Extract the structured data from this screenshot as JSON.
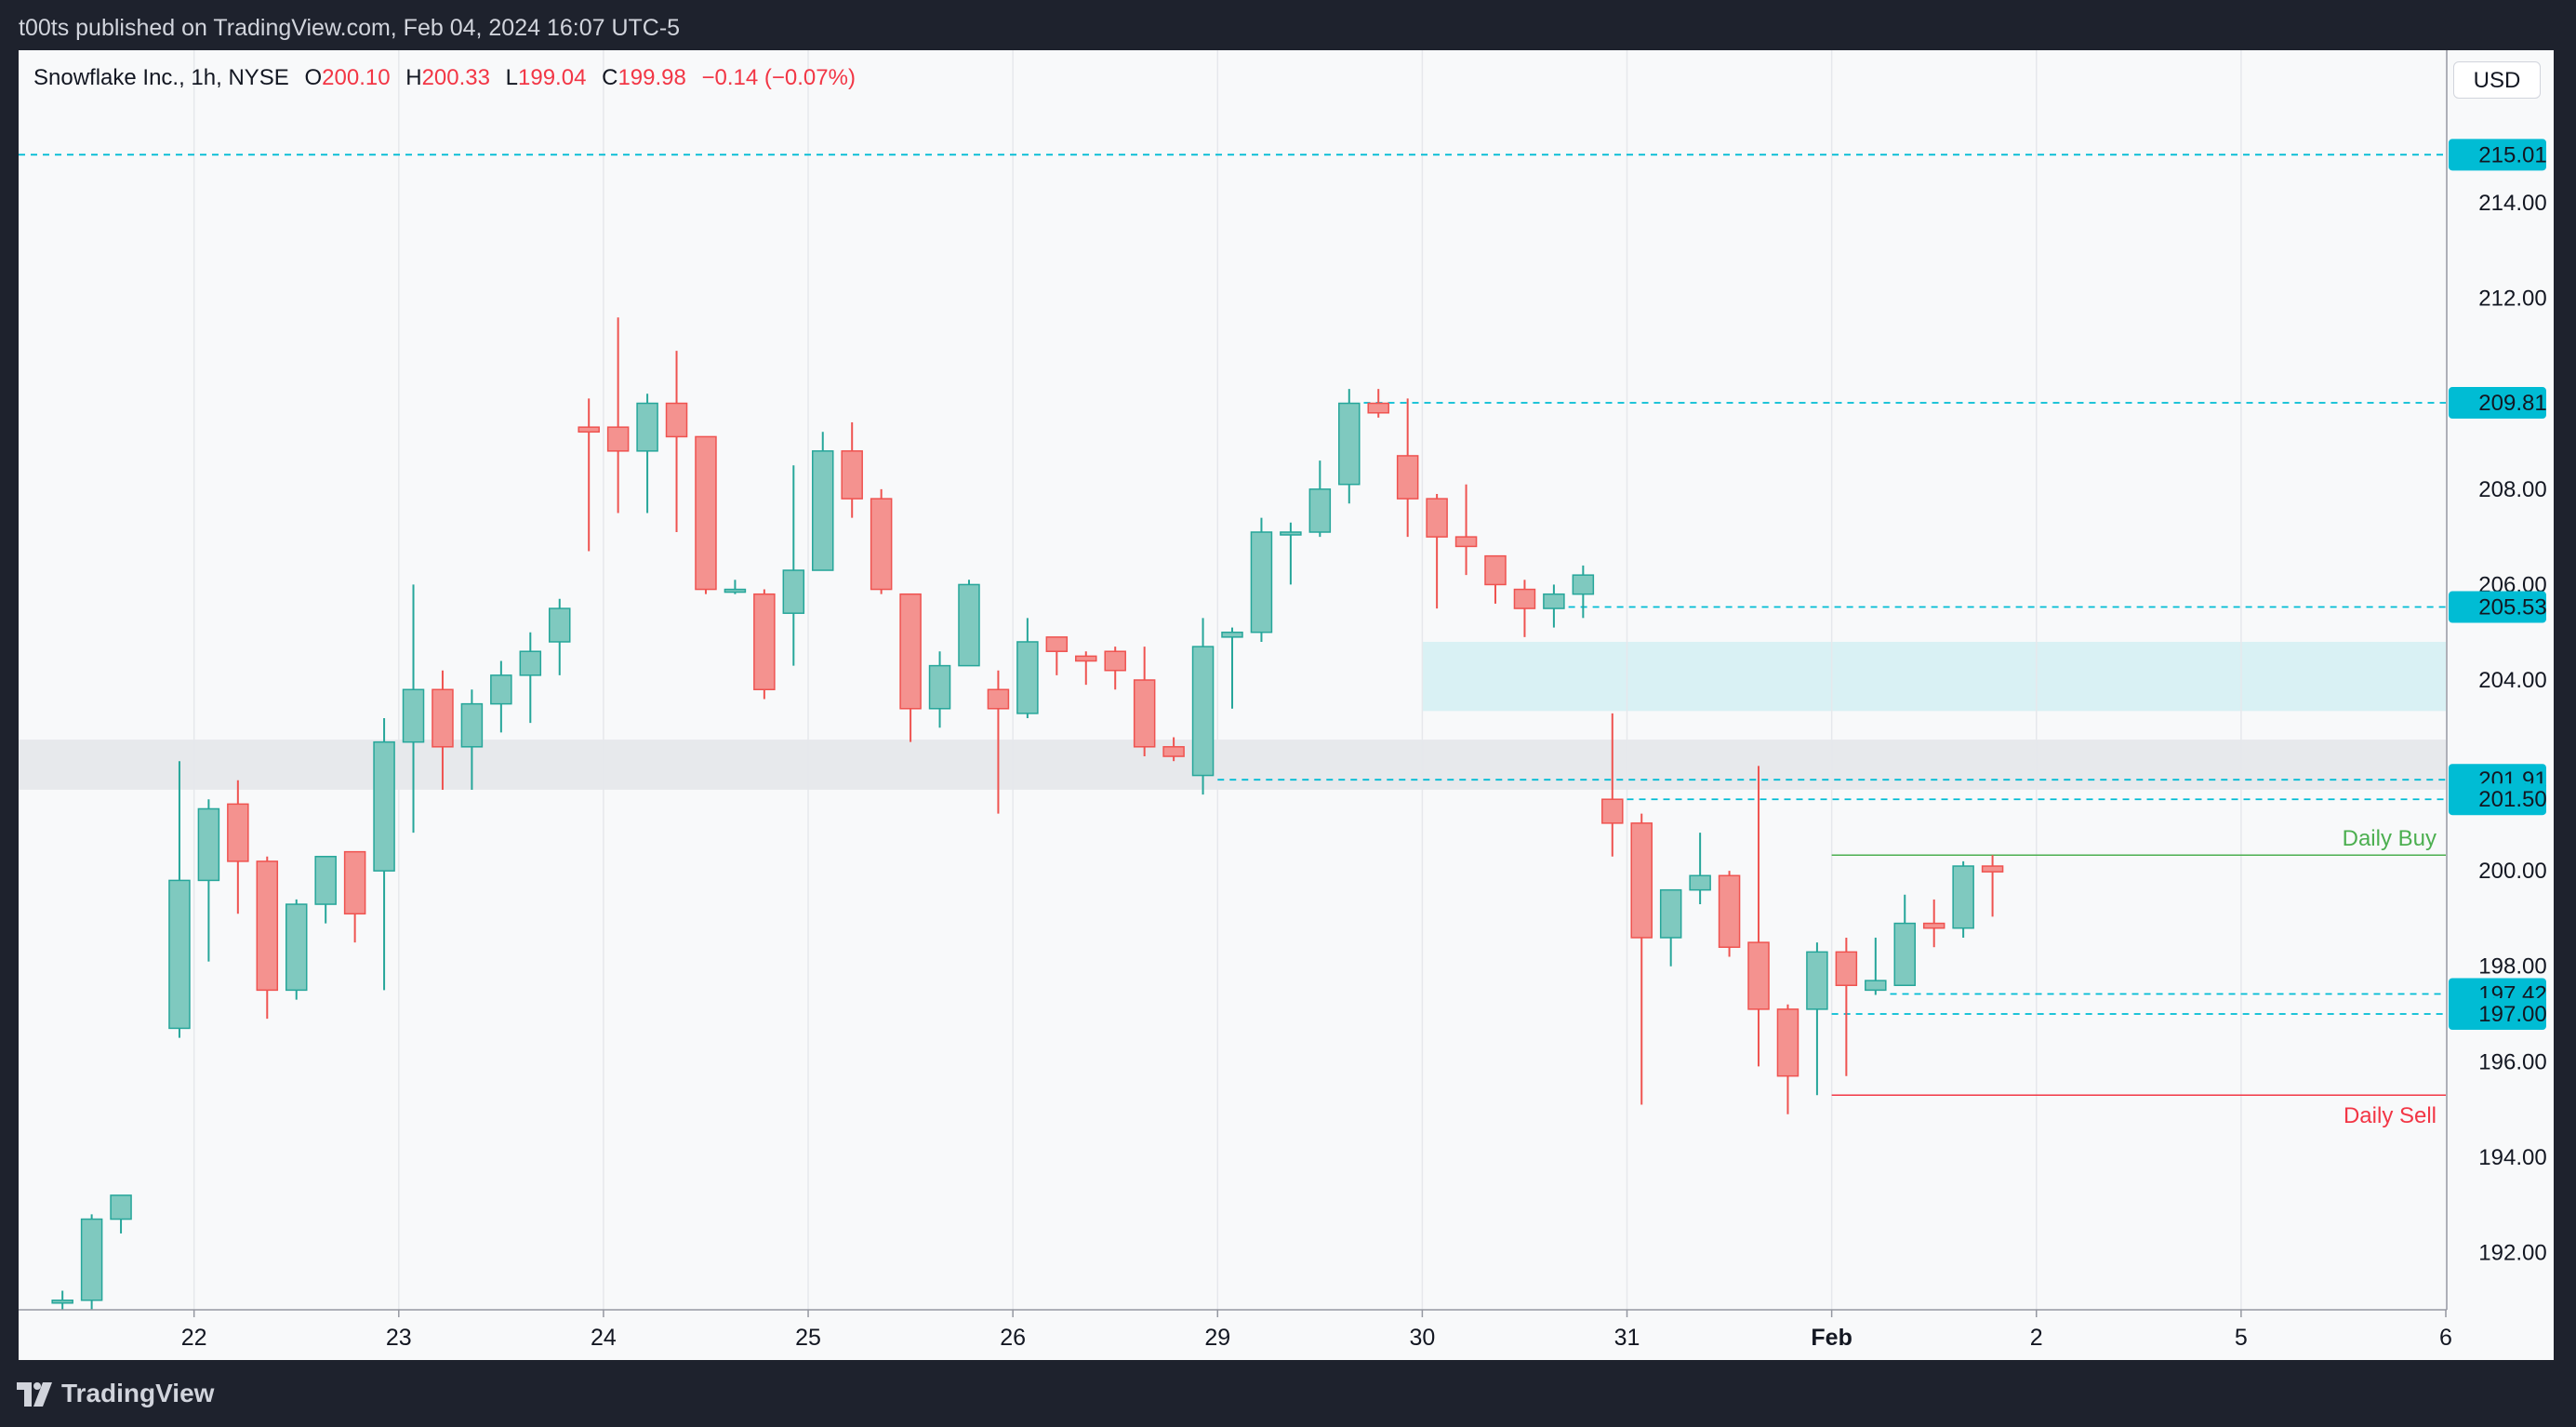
{
  "header": {
    "publish_text": "t00ts published on TradingView.com, Feb 04, 2024 16:07 UTC-5"
  },
  "legend": {
    "symbol": "Snowflake Inc., 1h, NYSE",
    "o_label": "O",
    "o_value": "200.10",
    "h_label": "H",
    "h_value": "200.33",
    "l_label": "L",
    "l_value": "199.04",
    "c_label": "C",
    "c_value": "199.98",
    "change": "−0.14 (−0.07%)"
  },
  "currency": "USD",
  "footer": {
    "brand": "TradingView"
  },
  "colors": {
    "up": "#26a69a",
    "down": "#ef5350",
    "level": "#00bcd4",
    "buy": "#4caf50",
    "sell": "#f23645"
  },
  "chart_data": {
    "type": "candlestick",
    "ylim": [
      190.8,
      217.2
    ],
    "y_ticks": [
      "192.00",
      "194.00",
      "196.00",
      "198.00",
      "200.00",
      "204.00",
      "206.00",
      "208.00",
      "212.00",
      "214.00"
    ],
    "x_ticks": [
      {
        "label": "22",
        "x": 4.5
      },
      {
        "label": "23",
        "x": 11.5
      },
      {
        "label": "24",
        "x": 18.5
      },
      {
        "label": "25",
        "x": 25.5
      },
      {
        "label": "26",
        "x": 32.5
      },
      {
        "label": "29",
        "x": 39.5
      },
      {
        "label": "30",
        "x": 46.5
      },
      {
        "label": "31",
        "x": 53.5
      },
      {
        "label": "Feb",
        "x": 60.5
      },
      {
        "label": "2",
        "x": 67.5
      },
      {
        "label": "5",
        "x": 74.5
      },
      {
        "label": "6",
        "x": 81.5
      }
    ],
    "x_range": [
      -1.5,
      81.5
    ],
    "candles": [
      [
        0,
        191.0,
        191.0,
        191.2,
        190.8
      ],
      [
        1,
        191.0,
        192.7,
        192.8,
        190.8
      ],
      [
        2,
        192.7,
        193.2,
        193.2,
        192.4
      ],
      [
        4,
        196.7,
        199.8,
        202.3,
        196.5
      ],
      [
        5,
        199.8,
        201.3,
        201.5,
        198.1
      ],
      [
        6,
        201.4,
        200.2,
        201.9,
        199.1
      ],
      [
        7,
        200.2,
        197.5,
        200.3,
        196.9
      ],
      [
        8,
        197.5,
        199.3,
        199.4,
        197.3
      ],
      [
        9,
        199.3,
        200.3,
        200.3,
        198.9
      ],
      [
        10,
        200.4,
        199.1,
        200.4,
        198.5
      ],
      [
        11,
        200.0,
        202.7,
        203.2,
        197.5
      ],
      [
        12,
        202.7,
        203.8,
        206.0,
        200.8
      ],
      [
        13,
        203.8,
        202.6,
        204.2,
        201.7
      ],
      [
        14,
        202.6,
        203.5,
        203.8,
        201.7
      ],
      [
        15,
        203.5,
        204.1,
        204.4,
        202.9
      ],
      [
        16,
        204.1,
        204.6,
        205.0,
        203.1
      ],
      [
        17,
        204.8,
        205.5,
        205.7,
        204.1
      ],
      [
        18,
        209.3,
        209.2,
        209.9,
        206.7
      ],
      [
        19,
        209.3,
        208.8,
        211.6,
        207.5
      ],
      [
        20,
        208.8,
        209.8,
        210.0,
        207.5
      ],
      [
        21,
        209.8,
        209.1,
        210.9,
        207.1
      ],
      [
        22,
        209.1,
        205.9,
        209.1,
        205.8
      ],
      [
        23,
        205.9,
        205.9,
        206.1,
        205.8
      ],
      [
        24,
        205.8,
        203.8,
        205.9,
        203.6
      ],
      [
        25,
        205.4,
        206.3,
        208.5,
        204.3
      ],
      [
        26,
        206.3,
        208.8,
        209.2,
        206.3
      ],
      [
        27,
        208.8,
        207.8,
        209.4,
        207.4
      ],
      [
        28,
        207.8,
        205.9,
        208.0,
        205.8
      ],
      [
        29,
        205.8,
        203.4,
        205.8,
        202.7
      ],
      [
        30,
        203.4,
        204.3,
        204.6,
        203.0
      ],
      [
        31,
        204.3,
        206.0,
        206.1,
        204.3
      ],
      [
        32,
        203.8,
        203.4,
        204.2,
        201.2
      ],
      [
        33,
        203.3,
        204.8,
        205.3,
        203.2
      ],
      [
        34,
        204.9,
        204.6,
        204.9,
        204.1
      ],
      [
        35,
        204.5,
        204.4,
        204.6,
        203.9
      ],
      [
        36,
        204.6,
        204.2,
        204.7,
        203.8
      ],
      [
        37,
        204.0,
        202.6,
        204.7,
        202.4
      ],
      [
        38,
        202.6,
        202.4,
        202.8,
        202.3
      ],
      [
        39,
        202.0,
        204.7,
        205.3,
        201.6
      ],
      [
        40,
        204.9,
        205.0,
        205.1,
        203.4
      ],
      [
        41,
        205.0,
        207.1,
        207.4,
        204.8
      ],
      [
        42,
        207.1,
        207.1,
        207.3,
        206.0
      ],
      [
        43,
        207.1,
        208.0,
        208.6,
        207.0
      ],
      [
        44,
        208.1,
        209.8,
        210.1,
        207.7
      ],
      [
        45,
        209.8,
        209.6,
        210.1,
        209.5
      ],
      [
        46,
        208.7,
        207.8,
        209.9,
        207.0
      ],
      [
        47,
        207.8,
        207.0,
        207.9,
        205.5
      ],
      [
        48,
        207.0,
        206.8,
        208.1,
        206.2
      ],
      [
        49,
        206.6,
        206.0,
        206.6,
        205.6
      ],
      [
        50,
        205.9,
        205.5,
        206.1,
        204.9
      ],
      [
        51,
        205.5,
        205.8,
        206.0,
        205.1
      ],
      [
        52,
        205.8,
        206.2,
        206.4,
        205.3
      ],
      [
        53,
        201.5,
        201.0,
        203.3,
        200.3
      ],
      [
        54,
        201.0,
        198.6,
        201.2,
        195.1
      ],
      [
        55,
        198.6,
        199.6,
        199.6,
        198.0
      ],
      [
        56,
        199.6,
        199.9,
        200.8,
        199.3
      ],
      [
        57,
        199.9,
        198.4,
        200.0,
        198.2
      ],
      [
        58,
        198.5,
        197.1,
        202.2,
        195.9
      ],
      [
        59,
        197.1,
        195.7,
        197.2,
        194.9
      ],
      [
        60,
        197.1,
        198.3,
        198.5,
        195.3
      ],
      [
        61,
        198.3,
        197.6,
        198.6,
        195.7
      ],
      [
        62,
        197.5,
        197.7,
        198.6,
        197.4
      ],
      [
        63,
        197.6,
        198.9,
        199.5,
        197.6
      ],
      [
        64,
        198.9,
        198.8,
        199.4,
        198.4
      ],
      [
        65,
        198.8,
        200.1,
        200.2,
        198.6
      ],
      [
        66,
        200.1,
        199.98,
        200.33,
        199.04
      ]
    ],
    "levels": [
      {
        "value": 215.01,
        "label": "215.01",
        "x_start": -1.5
      },
      {
        "value": 209.81,
        "label": "209.81",
        "x_start": 44.5
      },
      {
        "value": 205.53,
        "label": "205.53",
        "x_start": 51.5
      },
      {
        "value": 201.91,
        "label": "201.91",
        "x_start": 39.5
      },
      {
        "value": 201.5,
        "label": "201.50",
        "x_start": 53.5
      },
      {
        "value": 197.42,
        "label": "197.42",
        "x_start": 62.5
      },
      {
        "value": 197.0,
        "label": "197.00",
        "x_start": 60.5
      }
    ],
    "zones": [
      {
        "y1": 203.35,
        "y2": 204.8,
        "x_start": 46.5,
        "color": "#d9f1f4"
      },
      {
        "y1": 201.7,
        "y2": 202.75,
        "x_start": -1.5,
        "color": "#e7e9ec"
      }
    ],
    "signals": [
      {
        "label": "Daily Buy",
        "value": 200.33,
        "x_start": 60.5,
        "color": "#4caf50"
      },
      {
        "label": "Daily Sell",
        "value": 195.3,
        "x_start": 60.5,
        "color": "#f23645"
      }
    ]
  }
}
